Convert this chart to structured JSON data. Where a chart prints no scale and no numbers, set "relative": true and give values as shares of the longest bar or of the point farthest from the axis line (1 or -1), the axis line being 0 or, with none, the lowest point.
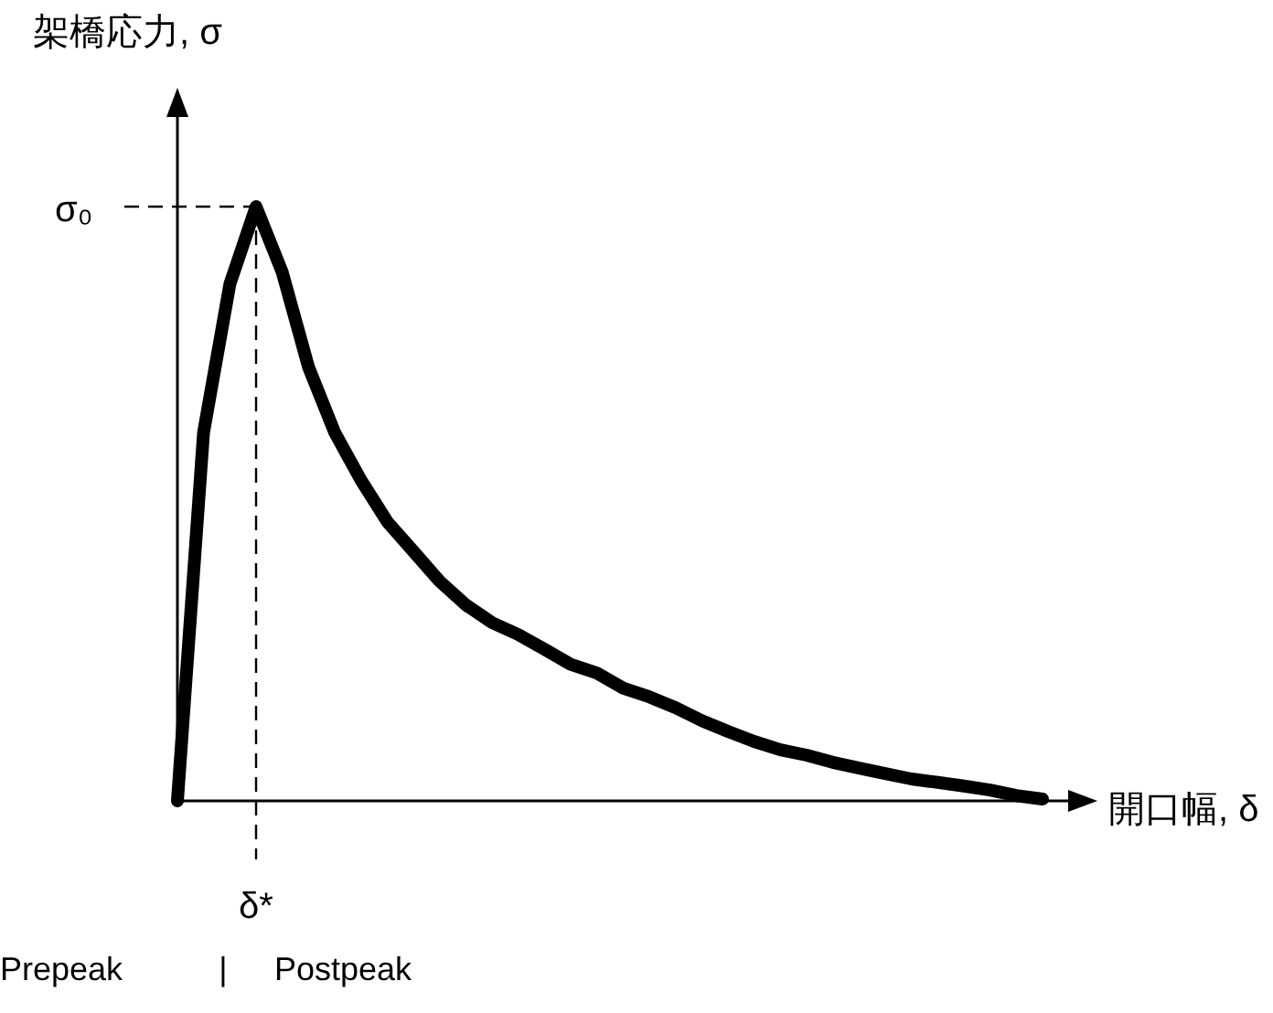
{
  "chart_data": {
    "type": "line",
    "relative": true,
    "xlabel": "開口幅, δ",
    "ylabel": "架橋応力, σ",
    "categories": [
      null,
      null,
      null,
      null,
      null,
      null,
      null,
      null,
      null,
      null,
      null,
      null,
      null,
      null,
      null,
      null,
      null,
      null,
      null,
      null,
      null,
      null,
      null,
      null,
      null,
      null,
      null,
      null,
      null,
      null,
      null,
      null,
      null,
      null
    ],
    "series": [
      {
        "color": "#000000",
        "values": [
          0,
          0.62,
          0.87,
          1,
          0.89,
          0.73,
          0.62,
          0.54,
          0.47,
          0.42,
          0.37,
          0.33,
          0.3,
          0.28,
          0.255,
          0.23,
          0.215,
          0.19,
          0.175,
          0.157,
          0.135,
          0.117,
          0.1,
          0.086,
          0.077,
          0.065,
          0.055,
          0.046,
          0.037,
          0.031,
          0.025,
          0.018,
          0.009,
          0.003
        ]
      }
    ],
    "line_style": "solid",
    "annotations": [
      "σ₀",
      "δ*",
      "Prepeak",
      "|",
      "Postpeak"
    ]
  }
}
